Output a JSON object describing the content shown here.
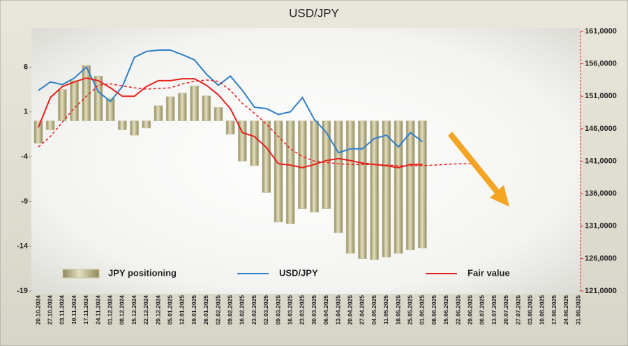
{
  "chart_data": {
    "type": "combo",
    "title": "USD/JPY",
    "categories": [
      "20.10.2024",
      "27.10.2024",
      "03.11.2024",
      "10.11.2024",
      "17.11.2024",
      "24.11.2024",
      "01.12.2024",
      "08.12.2024",
      "15.12.2024",
      "22.12.2024",
      "29.12.2024",
      "05.01.2025",
      "12.01.2025",
      "19.01.2025",
      "26.01.2025",
      "02.02.2025",
      "09.02.2025",
      "16.02.2025",
      "23.02.2025",
      "02.03.2025",
      "09.03.2025",
      "16.03.2025",
      "23.03.2025",
      "30.03.2025",
      "06.04.2025",
      "13.04.2025",
      "20.04.2025",
      "27.04.2025",
      "04.05.2025",
      "11.05.2025",
      "18.05.2025",
      "25.05.2025",
      "01.06.2025",
      "08.06.2025",
      "15.06.2025",
      "22.06.2025",
      "29.06.2025",
      "06.07.2025",
      "13.07.2025",
      "20.07.2025",
      "27.07.2025",
      "03.08.2025",
      "10.08.2025",
      "17.08.2025",
      "24.08.2025",
      "31.08.2025"
    ],
    "ylim": [
      -19,
      10
    ],
    "yticks": [
      -19,
      -14,
      -9,
      -4,
      1,
      6
    ],
    "y2lim": [
      121000,
      161000
    ],
    "y2ticks": [
      {
        "value": 121000,
        "label": "121,0000"
      },
      {
        "value": 126000,
        "label": "126,0000"
      },
      {
        "value": 131000,
        "label": "131,0000"
      },
      {
        "value": 136000,
        "label": "136,0000"
      },
      {
        "value": 141000,
        "label": "141,0000"
      },
      {
        "value": 146000,
        "label": "146,0000"
      },
      {
        "value": 151000,
        "label": "151,0000"
      },
      {
        "value": 156000,
        "label": "156,0000"
      },
      {
        "value": 161000,
        "label": "161,0000"
      }
    ],
    "series": [
      {
        "name": "JPY positioning",
        "type": "bar",
        "color": "#c9c398",
        "values": [
          -2.5,
          -1,
          3.5,
          4.5,
          6.2,
          5,
          2.5,
          -1,
          -1.6,
          -0.8,
          1.7,
          2.7,
          3.1,
          3.9,
          2.8,
          1.5,
          -1.5,
          -4.5,
          -5,
          -8,
          -11.3,
          -11.5,
          -9.8,
          -10.2,
          -9.8,
          -12.5,
          -14.8,
          -15.4,
          -15.5,
          -15.2,
          -14.8,
          -14.4,
          -14.2,
          null,
          null,
          null,
          null,
          null,
          null,
          null,
          null,
          null,
          null,
          null,
          null,
          null
        ]
      },
      {
        "name": "USD/JPY",
        "type": "line",
        "axis": "y2",
        "color": "#2f7fc8",
        "values": [
          151900,
          153200,
          152800,
          153800,
          155500,
          151700,
          150200,
          152500,
          157000,
          157900,
          158100,
          158100,
          157400,
          156600,
          154400,
          152700,
          154100,
          151900,
          149300,
          149100,
          148200,
          148600,
          150800,
          147400,
          145400,
          142300,
          142900,
          142900,
          144500,
          145000,
          143200,
          145400,
          144000,
          null,
          null,
          null,
          null,
          null,
          null,
          null,
          null,
          null,
          null,
          null,
          null,
          null
        ]
      },
      {
        "name": "Fair value",
        "type": "line",
        "axis": "y2",
        "color": "#e8201c",
        "values": [
          146200,
          150800,
          152500,
          153200,
          153800,
          153400,
          152300,
          151000,
          151000,
          152500,
          153400,
          153400,
          153700,
          153700,
          152700,
          151200,
          149100,
          145400,
          144800,
          143100,
          140600,
          140400,
          140000,
          140500,
          141100,
          141400,
          141100,
          140700,
          140500,
          140300,
          140000,
          140500,
          140500,
          null,
          null,
          null,
          null,
          null,
          null,
          null,
          null,
          null,
          null,
          null,
          null,
          null
        ]
      },
      {
        "type": "line",
        "axis": "y2",
        "color": "#e8201c",
        "dashed": true,
        "values": [
          143200,
          144800,
          147000,
          149200,
          151000,
          152700,
          152900,
          152600,
          152300,
          152100,
          152200,
          152300,
          152900,
          153300,
          153500,
          153300,
          151900,
          149900,
          148400,
          146700,
          144800,
          142900,
          141700,
          141000,
          140800,
          140600,
          140500,
          140500,
          140500,
          140400,
          140300,
          140300,
          140300,
          140400,
          140500,
          140600,
          140600,
          null,
          null,
          null,
          null,
          null,
          null,
          null,
          null,
          null
        ]
      }
    ]
  }
}
